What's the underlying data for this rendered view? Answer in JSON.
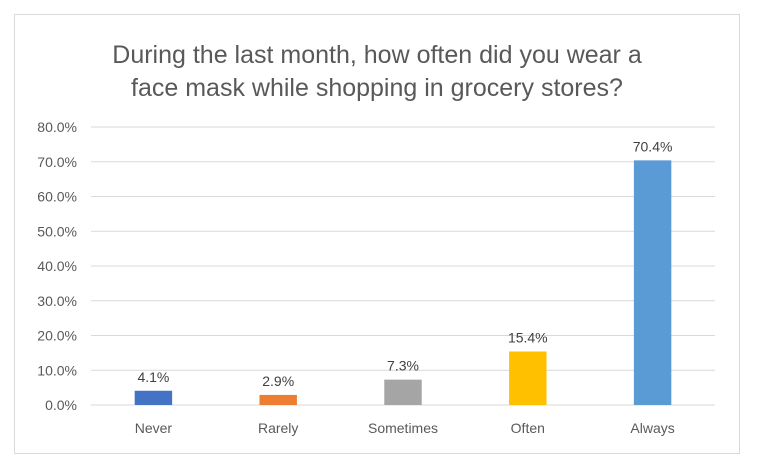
{
  "chart_data": {
    "type": "bar",
    "title": "During the last month, how often did you wear a\nface mask while shopping in grocery stores?",
    "categories": [
      "Never",
      "Rarely",
      "Sometimes",
      "Often",
      "Always"
    ],
    "values": [
      4.1,
      2.9,
      7.3,
      15.4,
      70.4
    ],
    "data_labels": [
      "4.1%",
      "2.9%",
      "7.3%",
      "15.4%",
      "70.4%"
    ],
    "colors": [
      "#4472c4",
      "#ed7d31",
      "#a5a5a5",
      "#ffc000",
      "#5b9bd5"
    ],
    "ylim": [
      0,
      80
    ],
    "ytick_labels": [
      "0.0%",
      "10.0%",
      "20.0%",
      "30.0%",
      "40.0%",
      "50.0%",
      "60.0%",
      "70.0%",
      "80.0%"
    ],
    "grid": true,
    "legend": "none",
    "xlabel": "",
    "ylabel": ""
  }
}
